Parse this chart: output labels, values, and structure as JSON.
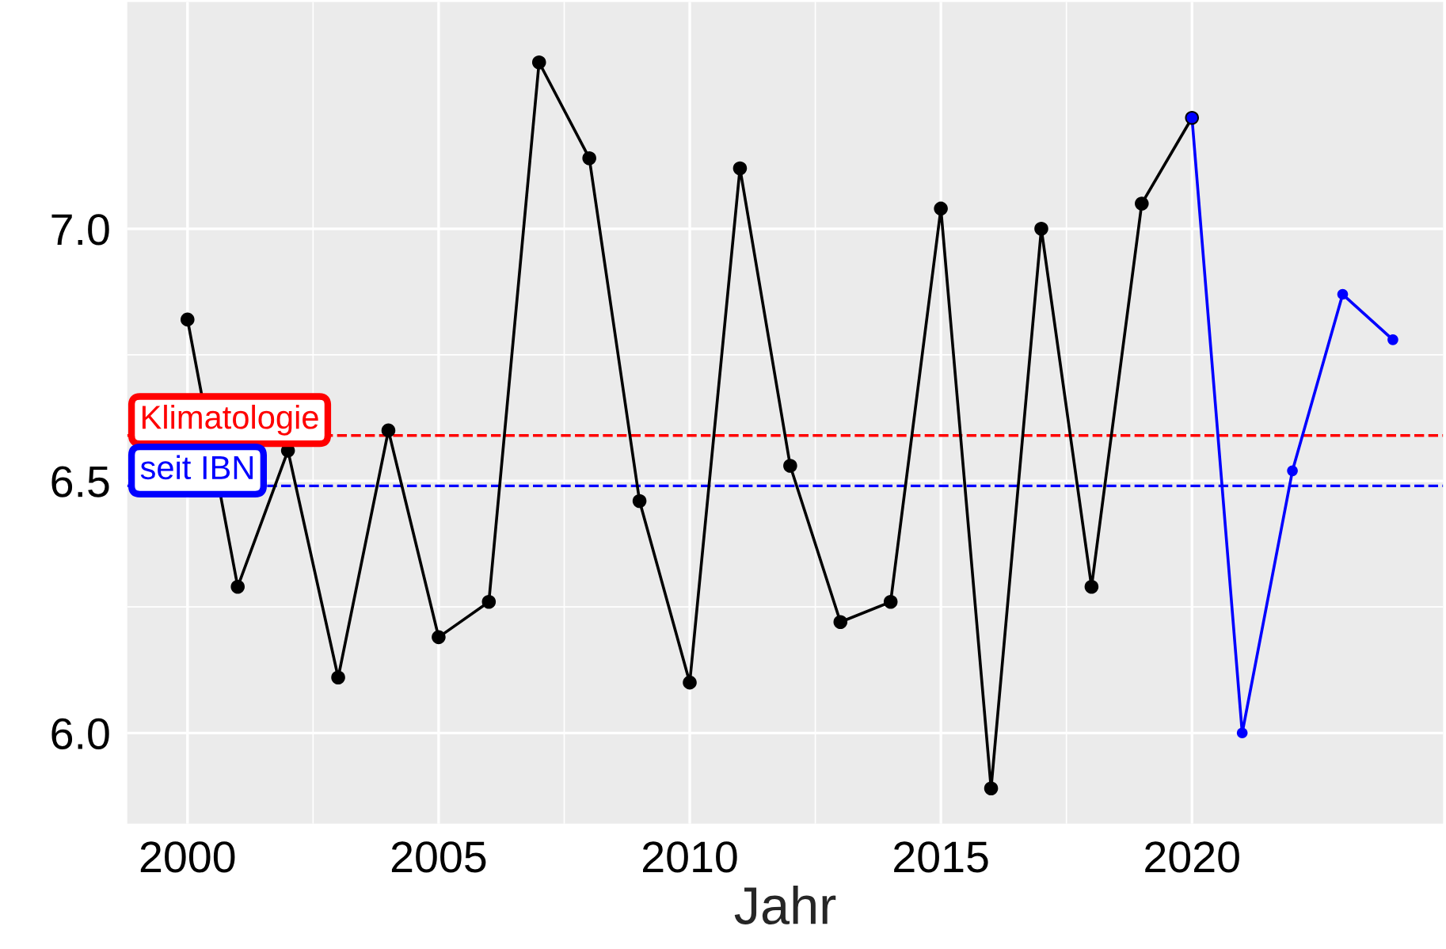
{
  "chart_data": {
    "type": "line",
    "xlabel": "Jahr",
    "series": [
      {
        "color": "#000000",
        "x": [
          2000,
          2001,
          2002,
          2003,
          2004,
          2005,
          2006,
          2007,
          2008,
          2009,
          2010,
          2011,
          2012,
          2013,
          2014,
          2015,
          2016,
          2017,
          2018,
          2019,
          2020
        ],
        "values": [
          6.82,
          6.29,
          6.56,
          6.11,
          6.6,
          6.19,
          6.26,
          7.33,
          7.14,
          6.46,
          6.1,
          7.12,
          6.53,
          6.22,
          6.26,
          7.04,
          5.89,
          7.0,
          6.29,
          7.05,
          7.22
        ]
      },
      {
        "color": "#0000ff",
        "x": [
          2020,
          2021,
          2022,
          2023,
          2024
        ],
        "values": [
          7.22,
          6.0,
          6.52,
          6.87,
          6.78
        ]
      }
    ],
    "ref_lines": [
      {
        "axis": "y",
        "value": 6.59,
        "label": "Klimatologie",
        "color": "#ff0000",
        "line_style": "dashed"
      },
      {
        "axis": "y",
        "value": 6.49,
        "label": "seit IBN",
        "color": "#0000ff",
        "line_style": "dashed"
      }
    ],
    "xlim": [
      1998.8,
      2025.0
    ],
    "ylim": [
      5.82,
      7.45
    ],
    "xticks": [
      2000,
      2005,
      2010,
      2015,
      2020
    ],
    "yticks": [
      {
        "value": 6.0,
        "label": "6.0"
      },
      {
        "value": 6.5,
        "label": "6.5"
      },
      {
        "value": 7.0,
        "label": "7.0"
      }
    ],
    "grid": true,
    "marker": "circle",
    "line_style": "solid"
  }
}
